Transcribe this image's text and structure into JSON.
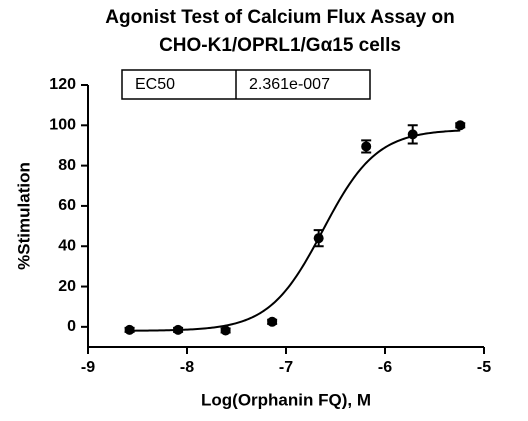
{
  "chart_data": {
    "type": "scatter",
    "title": [
      "Agonist Test of Calcium Flux Assay on",
      "CHO-K1/OPRL1/Gα15 cells"
    ],
    "x_label": "Log(Orphanin FQ), M",
    "y_label": "%Stimulation",
    "x": [
      -8.58,
      -8.09,
      -7.61,
      -7.14,
      -6.67,
      -6.19,
      -5.72,
      -5.24
    ],
    "series": [
      {
        "name": null,
        "color": "#000000",
        "values": [
          -1.5,
          -1.5,
          -1.8,
          2.5,
          44,
          89.5,
          95.5,
          100
        ],
        "errors": [
          1,
          1,
          1,
          1,
          4,
          3,
          4.5,
          1
        ]
      }
    ],
    "curve": {
      "bottom": -2,
      "top": 98,
      "hill": 1.6
    },
    "table": {
      "rows": [
        [
          "EC50",
          "2.361e-007"
        ]
      ]
    },
    "xlim": [
      -9,
      -5
    ],
    "xticks": [
      -9,
      -8,
      -7,
      -6,
      -5
    ],
    "ylim": [
      -10,
      120
    ],
    "yticks": [
      0,
      20,
      40,
      60,
      80,
      100,
      120
    ]
  }
}
